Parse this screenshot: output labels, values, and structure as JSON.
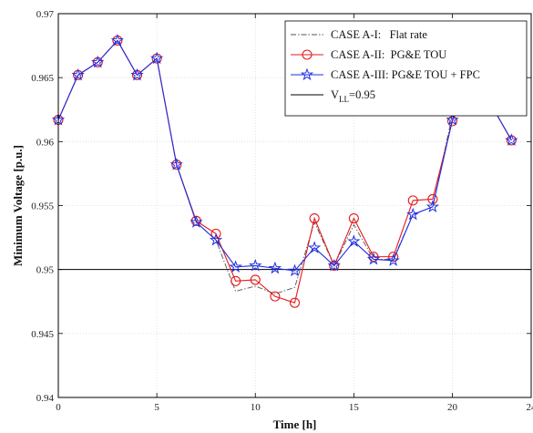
{
  "chart_data": {
    "type": "line",
    "xlabel": "Time [h]",
    "ylabel": "Minimum Voltage [p.u.]",
    "xlim": [
      0,
      24
    ],
    "ylim": [
      0.94,
      0.97
    ],
    "xticks": [
      "0",
      "5",
      "10",
      "15",
      "20",
      "24"
    ],
    "yticks": [
      "0.94",
      "0.945",
      "0.95",
      "0.955",
      "0.96",
      "0.965",
      "0.97"
    ],
    "grid": true,
    "legend_position": "top-right",
    "x": [
      0,
      1,
      2,
      3,
      4,
      5,
      6,
      7,
      8,
      9,
      10,
      11,
      12,
      13,
      14,
      15,
      16,
      17,
      18,
      19,
      20,
      21,
      22,
      23
    ],
    "series": [
      {
        "name": "CASE A-I:   Flat rate",
        "color": "#555555",
        "style": "dash-dot",
        "marker": "none",
        "values": [
          0.9617,
          0.9652,
          0.9662,
          0.9679,
          0.9652,
          0.9665,
          0.9582,
          0.9537,
          0.9523,
          0.9483,
          0.9487,
          0.9481,
          0.9486,
          0.9537,
          0.9503,
          0.9535,
          0.9508,
          0.9508,
          0.9543,
          0.9549,
          0.9621,
          0.9651,
          0.9628,
          0.9601
        ]
      },
      {
        "name": "CASE A-II:  PG&E TOU",
        "color": "#e31a1c",
        "style": "solid",
        "marker": "circle",
        "values": [
          0.9617,
          0.9652,
          0.9662,
          0.9679,
          0.9652,
          0.9665,
          0.9582,
          0.9538,
          0.9528,
          0.9491,
          0.9492,
          0.9479,
          0.9474,
          0.954,
          0.9503,
          0.954,
          0.951,
          0.951,
          0.9554,
          0.9555,
          0.9616,
          0.9652,
          0.9628,
          0.9601
        ]
      },
      {
        "name": "CASE A-III: PG&E TOU + FPC",
        "color": "#1f2fe0",
        "style": "solid",
        "marker": "star",
        "values": [
          0.9617,
          0.9652,
          0.9662,
          0.9679,
          0.9652,
          0.9665,
          0.9582,
          0.9537,
          0.9523,
          0.9502,
          0.9503,
          0.9501,
          0.9499,
          0.9517,
          0.9503,
          0.9522,
          0.9508,
          0.9507,
          0.9543,
          0.9549,
          0.9617,
          0.9652,
          0.9628,
          0.9601
        ]
      }
    ],
    "reference_lines": [
      {
        "name_main": "V",
        "name_sub": "LL",
        "name_rest": "=0.95",
        "value": 0.95,
        "color": "#000000"
      }
    ]
  }
}
